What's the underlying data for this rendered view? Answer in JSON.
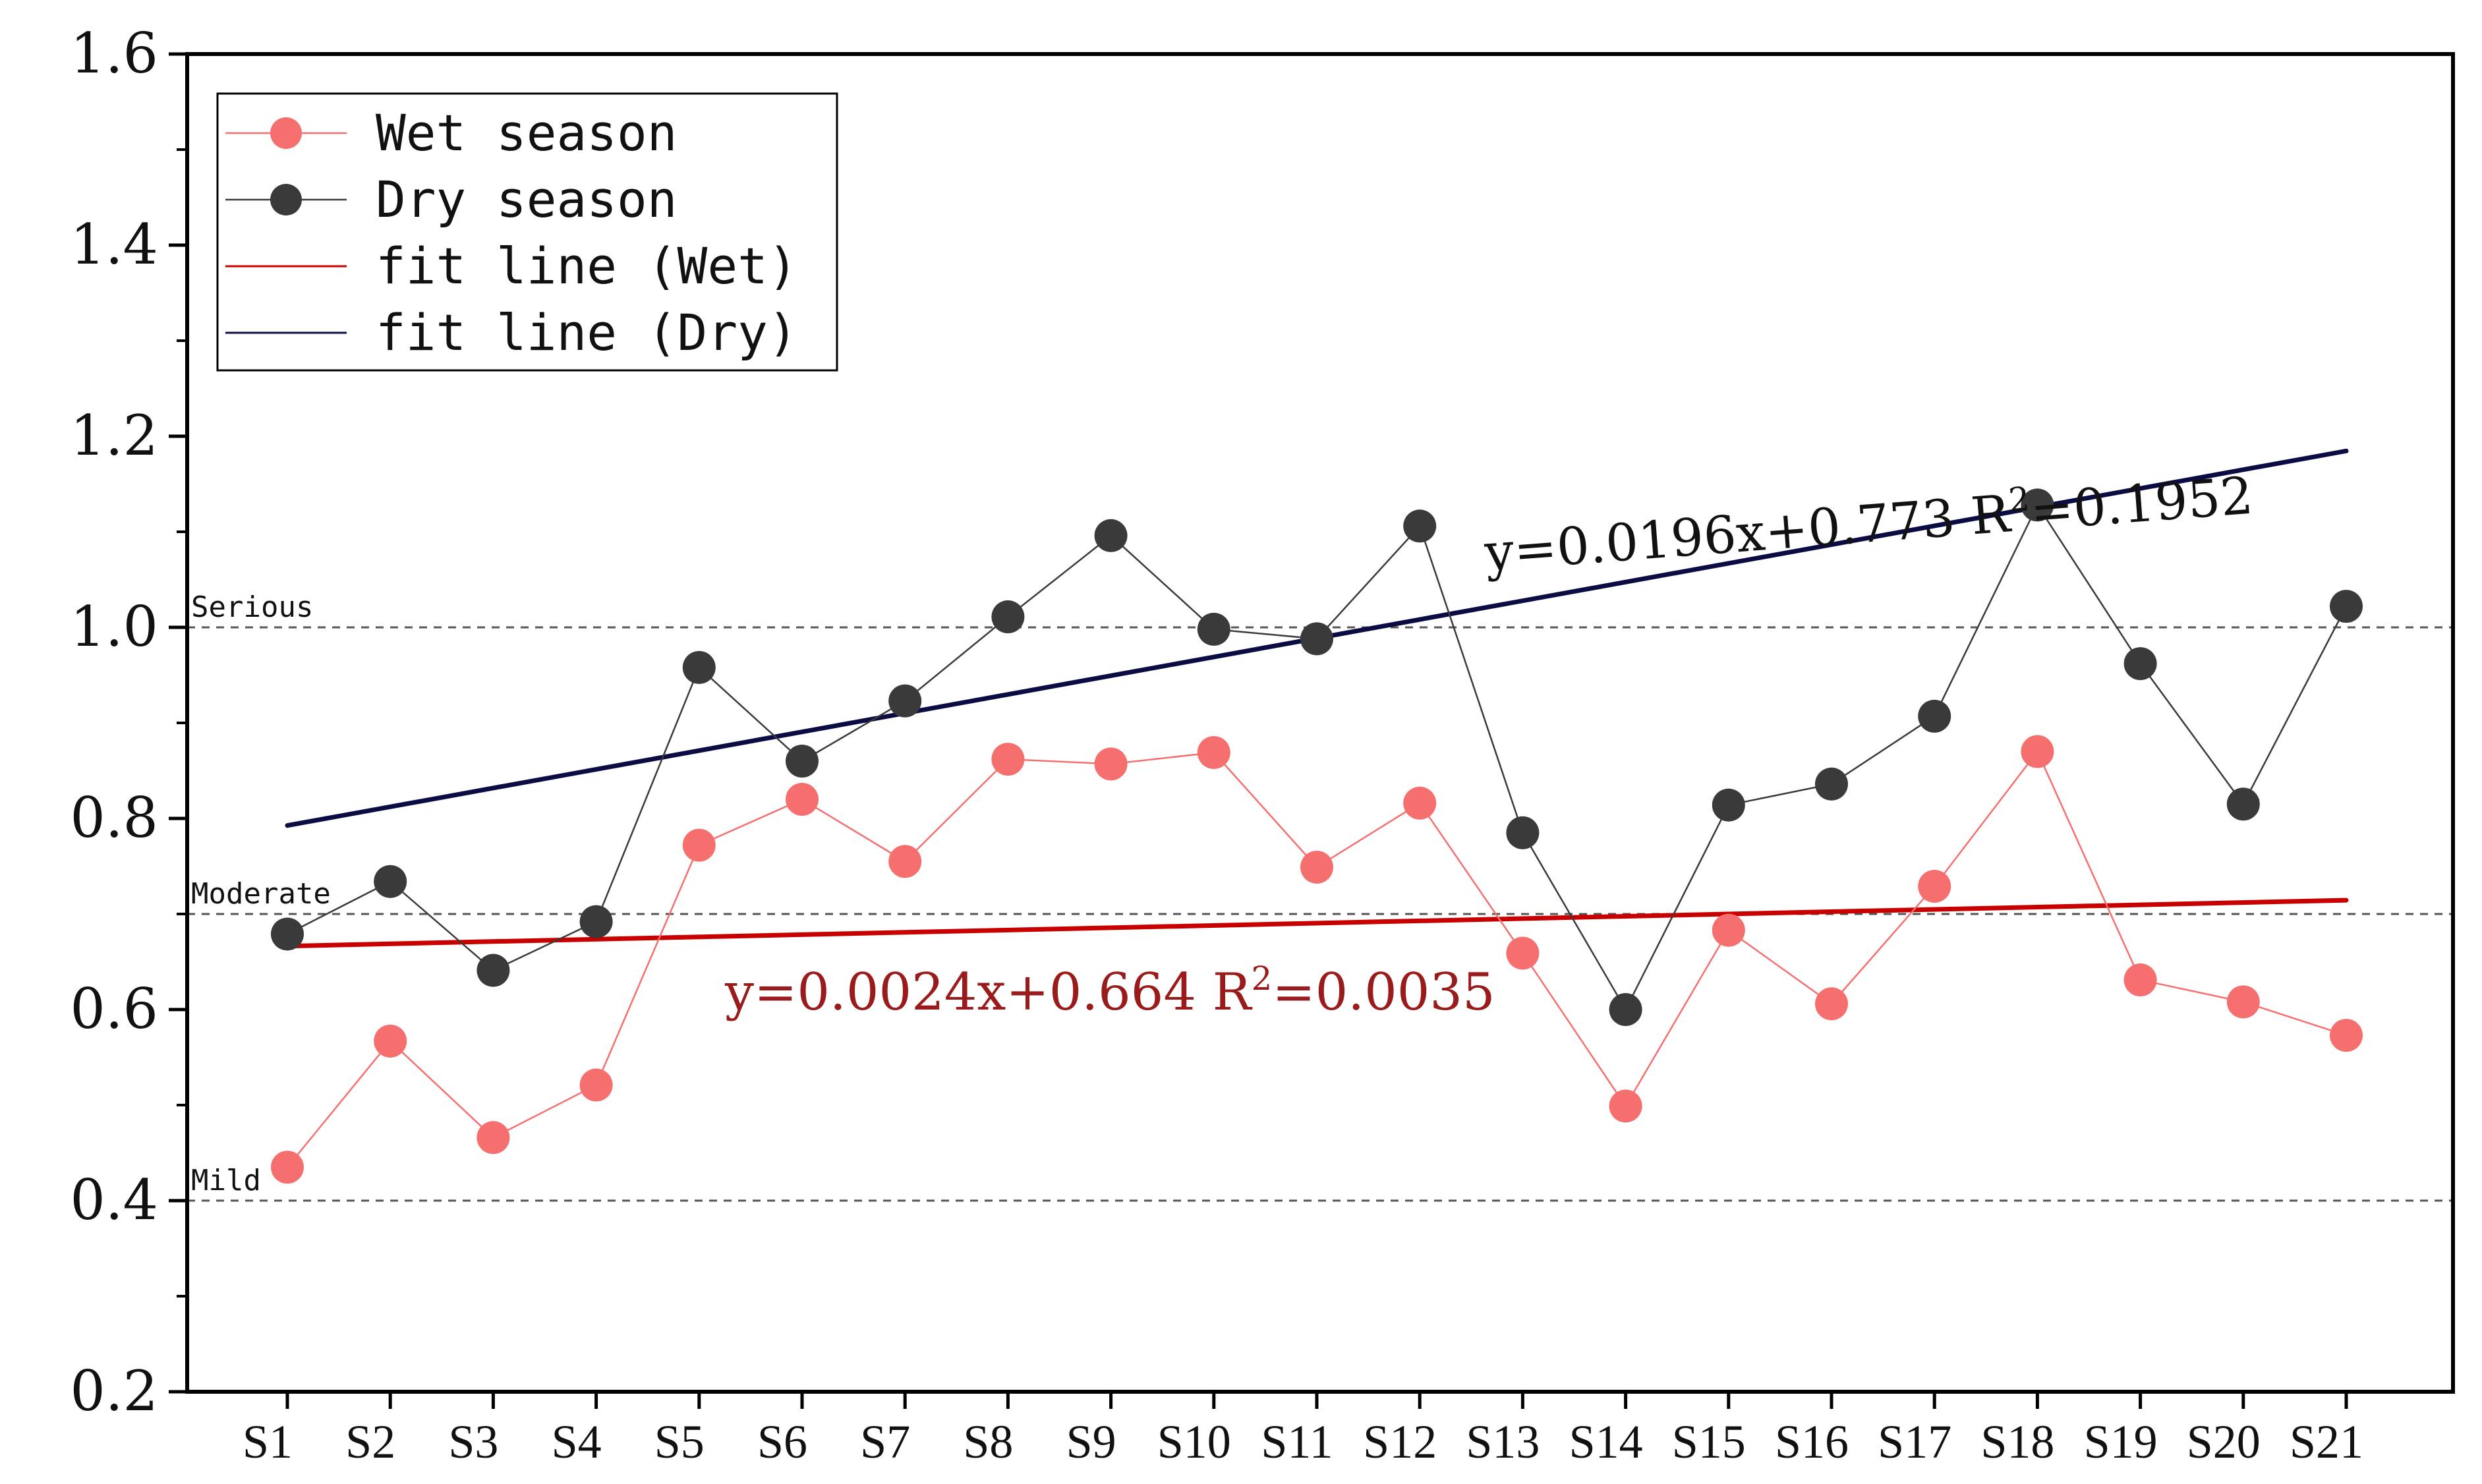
{
  "chart_data": {
    "type": "line",
    "categories": [
      "S1",
      "S2",
      "S3",
      "S4",
      "S5",
      "S6",
      "S7",
      "S8",
      "S9",
      "S10",
      "S11",
      "S12",
      "S13",
      "S14",
      "S15",
      "S16",
      "S17",
      "S18",
      "S19",
      "S20",
      "S21"
    ],
    "series": [
      {
        "name": "Wet season",
        "color": "#f66f6f",
        "values": [
          0.435,
          0.567,
          0.466,
          0.521,
          0.772,
          0.82,
          0.755,
          0.862,
          0.857,
          0.869,
          0.749,
          0.816,
          0.659,
          0.499,
          0.683,
          0.606,
          0.729,
          0.87,
          0.631,
          0.608,
          0.573
        ]
      },
      {
        "name": "Dry season",
        "color": "#3a3a3a",
        "values": [
          0.679,
          0.734,
          0.641,
          0.692,
          0.958,
          0.86,
          0.923,
          1.011,
          1.096,
          0.998,
          0.988,
          1.106,
          0.785,
          0.6,
          0.814,
          0.836,
          0.907,
          1.128,
          0.962,
          0.815,
          1.022
        ]
      }
    ],
    "fits": [
      {
        "name": "fit line (Wet)",
        "color": "#c80000",
        "slope": 0.0024,
        "intercept": 0.664,
        "equation": "y=0.0024x+0.664",
        "r2_label": "R",
        "r2_sup": "2",
        "r2_value": "=0.0035",
        "label_color": "#9a1b1b"
      },
      {
        "name": "fit line (Dry)",
        "color": "#0c0c45",
        "slope": 0.0196,
        "intercept": 0.773,
        "equation": "y=0.0196x+0.773",
        "r2_label": "R",
        "r2_sup": "2",
        "r2_value": "=0.1952",
        "label_color": "#111111"
      }
    ],
    "reference_lines": [
      {
        "label": "Serious",
        "value": 1.0
      },
      {
        "label": "Moderate",
        "value": 0.7
      },
      {
        "label": "Mild",
        "value": 0.4
      }
    ],
    "ylim": [
      0.2,
      1.6
    ],
    "yticks": [
      0.2,
      0.4,
      0.6,
      0.8,
      1.0,
      1.2,
      1.4,
      1.6
    ],
    "ytick_labels": [
      "0.2",
      "0.4",
      "0.6",
      "0.8",
      "1.0",
      "1.2",
      "1.4",
      "1.6"
    ],
    "legend": {
      "position": "top-left",
      "entries": [
        "Wet season",
        "Dry season",
        "fit line (Wet)",
        "fit line (Dry)"
      ]
    },
    "title": "",
    "xlabel": "",
    "ylabel": ""
  }
}
